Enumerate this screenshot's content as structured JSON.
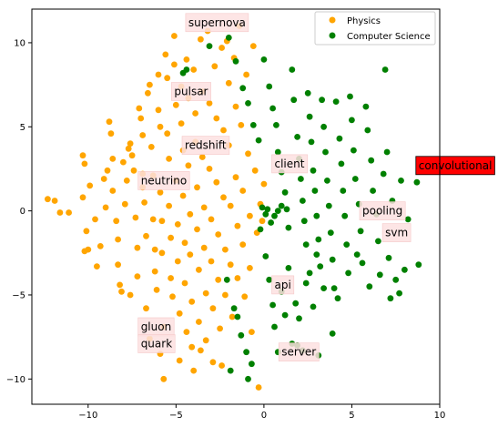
{
  "chart_data": {
    "type": "scatter",
    "title": "",
    "xlabel": "",
    "ylabel": "",
    "xlim": [
      -13.2,
      10
    ],
    "ylim": [
      -11.5,
      12
    ],
    "xticks": [
      -10,
      -5,
      0,
      5,
      10
    ],
    "yticks": [
      -10,
      -5,
      0,
      5,
      10
    ],
    "grid": false,
    "legend_position": "upper right",
    "series": [
      {
        "name": "Physics",
        "color": "#ffa500",
        "points": [
          [
            -12.3,
            0.7
          ],
          [
            -11.9,
            0.6
          ],
          [
            -11.1,
            -0.1
          ],
          [
            -10.3,
            3.3
          ],
          [
            -10.2,
            2.8
          ],
          [
            -10.3,
            0.8
          ],
          [
            -10.1,
            -1.2
          ],
          [
            -10.0,
            -2.3
          ],
          [
            -10.2,
            -2.4
          ],
          [
            -9.9,
            1.5
          ],
          [
            -9.6,
            -0.5
          ],
          [
            -9.1,
            1.9
          ],
          [
            -8.9,
            2.4
          ],
          [
            -8.8,
            5.3
          ],
          [
            -8.7,
            4.6
          ],
          [
            -8.6,
            3.1
          ],
          [
            -8.6,
            1.2
          ],
          [
            -8.4,
            -0.6
          ],
          [
            -8.3,
            -1.7
          ],
          [
            -8.3,
            -3.2
          ],
          [
            -8.2,
            -4.4
          ],
          [
            -8.1,
            -4.8
          ],
          [
            -7.9,
            0.4
          ],
          [
            -7.8,
            1.8
          ],
          [
            -7.7,
            3.7
          ],
          [
            -7.6,
            4.0
          ],
          [
            -7.5,
            3.3
          ],
          [
            -7.4,
            2.4
          ],
          [
            -7.3,
            -0.4
          ],
          [
            -7.2,
            -2.2
          ],
          [
            -7.2,
            -3.9
          ],
          [
            -7.1,
            6.1
          ],
          [
            -7.0,
            5.5
          ],
          [
            -6.9,
            4.5
          ],
          [
            -6.9,
            2.2
          ],
          [
            -6.8,
            0.5
          ],
          [
            -6.7,
            -1.5
          ],
          [
            -6.7,
            -5.8
          ],
          [
            -6.6,
            7.0
          ],
          [
            -6.5,
            7.5
          ],
          [
            -6.4,
            3.8
          ],
          [
            -6.3,
            2.1
          ],
          [
            -6.3,
            -0.5
          ],
          [
            -6.2,
            -2.3
          ],
          [
            -6.2,
            -3.6
          ],
          [
            -6.1,
            -4.7
          ],
          [
            -6.0,
            8.1
          ],
          [
            -6.0,
            6.0
          ],
          [
            -5.9,
            5.0
          ],
          [
            -5.9,
            1.1
          ],
          [
            -5.8,
            -0.6
          ],
          [
            -5.8,
            -2.5
          ],
          [
            -5.7,
            -6.9
          ],
          [
            -5.7,
            -10.0
          ],
          [
            -5.6,
            9.3
          ],
          [
            -5.5,
            7.9
          ],
          [
            -5.5,
            4.6
          ],
          [
            -5.4,
            3.1
          ],
          [
            -5.4,
            0.3
          ],
          [
            -5.3,
            -1.6
          ],
          [
            -5.3,
            -4.0
          ],
          [
            -5.2,
            -5.1
          ],
          [
            -5.1,
            10.4
          ],
          [
            -5.1,
            8.7
          ],
          [
            -5.0,
            6.3
          ],
          [
            -5.0,
            1.8
          ],
          [
            -4.9,
            -0.8
          ],
          [
            -4.9,
            -3.0
          ],
          [
            -4.8,
            -6.1
          ],
          [
            -4.8,
            -8.9
          ],
          [
            -4.7,
            7.4
          ],
          [
            -4.7,
            5.2
          ],
          [
            -4.6,
            3.6
          ],
          [
            -4.6,
            0.9
          ],
          [
            -4.5,
            -1.9
          ],
          [
            -4.5,
            -4.3
          ],
          [
            -4.4,
            -7.2
          ],
          [
            -4.4,
            9.0
          ],
          [
            -4.3,
            6.7
          ],
          [
            -4.3,
            2.7
          ],
          [
            -4.2,
            -0.2
          ],
          [
            -4.2,
            -2.6
          ],
          [
            -4.1,
            -5.4
          ],
          [
            -4.1,
            -8.1
          ],
          [
            -4.0,
            8.4
          ],
          [
            -3.9,
            5.8
          ],
          [
            -3.9,
            4.1
          ],
          [
            -3.8,
            1.4
          ],
          [
            -3.8,
            -1.1
          ],
          [
            -3.7,
            -3.5
          ],
          [
            -3.7,
            -6.6
          ],
          [
            -3.6,
            10.2
          ],
          [
            -3.5,
            7.1
          ],
          [
            -3.5,
            3.2
          ],
          [
            -3.4,
            0.2
          ],
          [
            -3.4,
            -2.2
          ],
          [
            -3.3,
            -4.9
          ],
          [
            -3.3,
            -7.7
          ],
          [
            -3.2,
            10.7
          ],
          [
            -3.1,
            6.4
          ],
          [
            -3.1,
            2.5
          ],
          [
            -3.0,
            -0.5
          ],
          [
            -3.0,
            -3.0
          ],
          [
            -2.9,
            -5.8
          ],
          [
            -2.9,
            -9.0
          ],
          [
            -2.8,
            8.6
          ],
          [
            -2.7,
            5.5
          ],
          [
            -2.7,
            1.7
          ],
          [
            -2.6,
            -1.4
          ],
          [
            -2.6,
            -4.1
          ],
          [
            -2.5,
            -7.0
          ],
          [
            -2.4,
            9.7
          ],
          [
            -2.3,
            4.8
          ],
          [
            -2.3,
            0.8
          ],
          [
            -2.2,
            -2.3
          ],
          [
            -2.2,
            -5.0
          ],
          [
            -2.1,
            10.1
          ],
          [
            -2.0,
            7.6
          ],
          [
            -2.0,
            3.9
          ],
          [
            -1.9,
            0.3
          ],
          [
            -1.9,
            -3.2
          ],
          [
            -1.8,
            -6.3
          ],
          [
            -1.7,
            9.1
          ],
          [
            -1.6,
            6.2
          ],
          [
            -1.6,
            2.0
          ],
          [
            -1.5,
            -0.9
          ],
          [
            -1.5,
            -4.0
          ],
          [
            -1.4,
            11.0
          ],
          [
            -1.3,
            5.1
          ],
          [
            -1.2,
            1.2
          ],
          [
            -1.2,
            -2.0
          ],
          [
            -1.1,
            -5.1
          ],
          [
            -1.0,
            8.1
          ],
          [
            -0.9,
            3.4
          ],
          [
            -0.8,
            -0.3
          ],
          [
            -0.8,
            -3.4
          ],
          [
            -0.7,
            -7.2
          ],
          [
            -0.6,
            9.8
          ],
          [
            -0.5,
            2.4
          ],
          [
            -0.4,
            -1.3
          ],
          [
            -0.3,
            -10.5
          ],
          [
            -0.2,
            0.4
          ],
          [
            -0.1,
            -0.6
          ],
          [
            0.0,
            1.6
          ],
          [
            -9.3,
            -2.1
          ],
          [
            -9.5,
            -3.3
          ],
          [
            -7.6,
            -5.0
          ],
          [
            -6.5,
            -7.6
          ],
          [
            -5.9,
            -8.5
          ],
          [
            -4.0,
            -9.5
          ],
          [
            -3.6,
            -8.3
          ],
          [
            -2.4,
            -9.2
          ],
          [
            -6.9,
            1.4
          ],
          [
            -8.0,
            2.9
          ],
          [
            -9.0,
            0.2
          ],
          [
            -11.6,
            -0.1
          ]
        ]
      },
      {
        "name": "Computer Science",
        "color": "#008000",
        "points": [
          [
            -4.6,
            8.2
          ],
          [
            -4.4,
            8.4
          ],
          [
            -3.1,
            9.8
          ],
          [
            -2.0,
            10.3
          ],
          [
            -1.6,
            8.9
          ],
          [
            -1.2,
            7.3
          ],
          [
            -0.9,
            6.4
          ],
          [
            -0.6,
            5.1
          ],
          [
            -0.3,
            4.2
          ],
          [
            0.0,
            9.0
          ],
          [
            0.3,
            7.4
          ],
          [
            0.5,
            6.1
          ],
          [
            0.7,
            5.1
          ],
          [
            0.8,
            3.5
          ],
          [
            1.0,
            2.3
          ],
          [
            1.2,
            1.1
          ],
          [
            1.3,
            0.1
          ],
          [
            1.4,
            -1.0
          ],
          [
            1.6,
            8.4
          ],
          [
            1.7,
            6.6
          ],
          [
            1.9,
            4.4
          ],
          [
            2.0,
            3.1
          ],
          [
            2.1,
            1.9
          ],
          [
            2.2,
            0.6
          ],
          [
            2.3,
            -0.6
          ],
          [
            2.4,
            -2.0
          ],
          [
            2.5,
            7.0
          ],
          [
            2.6,
            5.6
          ],
          [
            2.7,
            4.1
          ],
          [
            2.8,
            2.4
          ],
          [
            2.9,
            1.2
          ],
          [
            3.0,
            -0.3
          ],
          [
            3.1,
            -1.7
          ],
          [
            3.2,
            -3.3
          ],
          [
            3.3,
            6.6
          ],
          [
            3.4,
            5.0
          ],
          [
            3.5,
            3.5
          ],
          [
            3.6,
            1.8
          ],
          [
            3.7,
            0.3
          ],
          [
            3.8,
            -1.3
          ],
          [
            3.9,
            -2.9
          ],
          [
            4.0,
            -4.6
          ],
          [
            4.1,
            6.5
          ],
          [
            4.3,
            4.3
          ],
          [
            4.4,
            2.8
          ],
          [
            4.5,
            1.2
          ],
          [
            4.6,
            -0.3
          ],
          [
            4.7,
            -2.0
          ],
          [
            4.8,
            -3.7
          ],
          [
            4.9,
            6.8
          ],
          [
            5.0,
            5.4
          ],
          [
            5.1,
            3.6
          ],
          [
            5.2,
            1.9
          ],
          [
            5.4,
            0.4
          ],
          [
            5.5,
            -1.2
          ],
          [
            5.6,
            -3.1
          ],
          [
            5.8,
            6.2
          ],
          [
            5.9,
            4.8
          ],
          [
            6.1,
            3.0
          ],
          [
            6.2,
            1.2
          ],
          [
            6.4,
            -0.2
          ],
          [
            6.5,
            -1.8
          ],
          [
            6.6,
            -3.8
          ],
          [
            6.8,
            2.2
          ],
          [
            6.9,
            8.4
          ],
          [
            7.0,
            3.5
          ],
          [
            7.1,
            -2.8
          ],
          [
            7.2,
            -5.2
          ],
          [
            7.3,
            0.6
          ],
          [
            7.5,
            -4.1
          ],
          [
            7.8,
            1.8
          ],
          [
            8.0,
            -3.5
          ],
          [
            8.2,
            -0.5
          ],
          [
            8.7,
            1.7
          ],
          [
            8.8,
            -3.2
          ],
          [
            -0.2,
            -1.1
          ],
          [
            0.1,
            -2.7
          ],
          [
            0.3,
            -4.1
          ],
          [
            0.5,
            -5.6
          ],
          [
            0.6,
            -6.9
          ],
          [
            0.8,
            -8.4
          ],
          [
            1.0,
            -4.8
          ],
          [
            1.2,
            -6.2
          ],
          [
            1.4,
            -3.4
          ],
          [
            1.6,
            -7.9
          ],
          [
            1.8,
            -5.5
          ],
          [
            2.0,
            -6.4
          ],
          [
            2.2,
            -8.3
          ],
          [
            2.4,
            -4.3
          ],
          [
            2.6,
            -3.7
          ],
          [
            2.8,
            -5.7
          ],
          [
            3.0,
            -2.6
          ],
          [
            3.4,
            -4.6
          ],
          [
            -2.1,
            -4.1
          ],
          [
            -1.7,
            -5.8
          ],
          [
            -1.3,
            -7.4
          ],
          [
            -1.0,
            -8.4
          ],
          [
            -0.7,
            -9.1
          ],
          [
            -1.5,
            -6.3
          ],
          [
            0.4,
            -0.7
          ],
          [
            0.6,
            -0.3
          ],
          [
            0.8,
            0.0
          ],
          [
            1.0,
            0.3
          ],
          [
            0.2,
            0.1
          ],
          [
            -0.1,
            0.2
          ],
          [
            0.1,
            -0.2
          ],
          [
            -1.9,
            -9.5
          ],
          [
            -0.9,
            -10.0
          ],
          [
            5.3,
            -2.6
          ],
          [
            6.0,
            -4.5
          ],
          [
            7.7,
            -4.9
          ],
          [
            4.2,
            -5.2
          ],
          [
            3.9,
            -7.3
          ],
          [
            3.1,
            -8.6
          ],
          [
            1.9,
            -8.0
          ]
        ]
      }
    ],
    "annotations": [
      {
        "text": "supernova",
        "x": -4.3,
        "y": 11.2,
        "bg": "#fde0e0"
      },
      {
        "text": "pulsar",
        "x": -5.1,
        "y": 7.1,
        "bg": "#fde0e0"
      },
      {
        "text": "redshift",
        "x": -4.5,
        "y": 3.9,
        "bg": "#fde0e0"
      },
      {
        "text": "neutrino",
        "x": -7.0,
        "y": 1.8,
        "bg": "#fde0e0"
      },
      {
        "text": "client",
        "x": 0.6,
        "y": 2.8,
        "bg": "#fde0e0"
      },
      {
        "text": "convolutional",
        "x": 8.8,
        "y": 2.7,
        "bg": "#ff0000"
      },
      {
        "text": "pooling",
        "x": 5.6,
        "y": 0.0,
        "bg": "#fde0e0"
      },
      {
        "text": "svm",
        "x": 6.9,
        "y": -1.3,
        "bg": "#fde0e0"
      },
      {
        "text": "api",
        "x": 0.6,
        "y": -4.4,
        "bg": "#fde0e0"
      },
      {
        "text": "gluon",
        "x": -7.0,
        "y": -6.9,
        "bg": "#fde0e0"
      },
      {
        "text": "quark",
        "x": -7.0,
        "y": -7.9,
        "bg": "#fde0e0"
      },
      {
        "text": "server",
        "x": 1.0,
        "y": -8.4,
        "bg": "#fde0e0"
      }
    ]
  }
}
